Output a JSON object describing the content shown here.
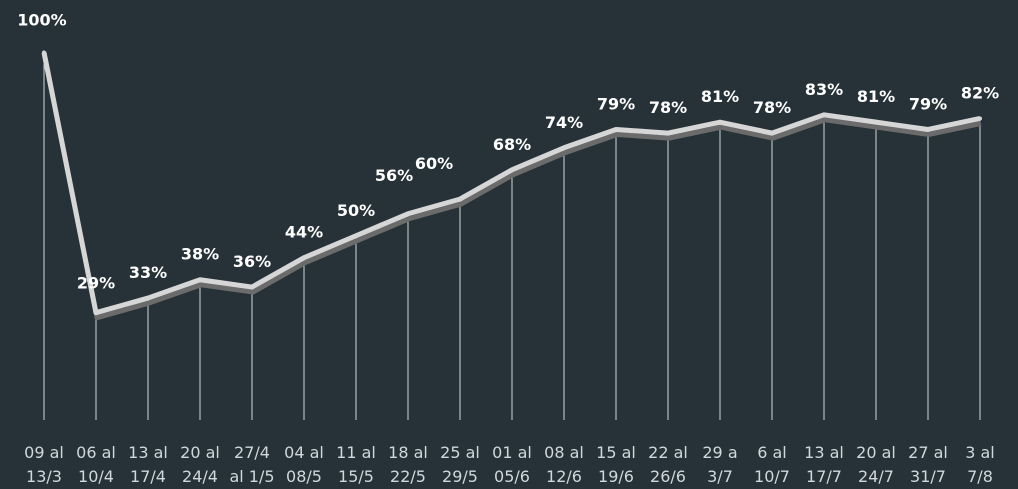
{
  "chart_data": {
    "type": "line",
    "title": "",
    "xlabel": "",
    "ylabel": "",
    "ylim": [
      0,
      100
    ],
    "grid": false,
    "legend": "none",
    "colors": {
      "background": "#263238",
      "line": "#d6d6d6",
      "line_shadow": "#6b6b6b",
      "drop_lines": "#cfd8dc",
      "label_text": "#ffffff",
      "axis_text": "#cfd8dc"
    },
    "categories": [
      [
        "09 al",
        "13/3"
      ],
      [
        "06 al",
        "10/4"
      ],
      [
        "13 al",
        "17/4"
      ],
      [
        "20 al",
        "24/4"
      ],
      [
        "27/4",
        "al 1/5"
      ],
      [
        "04 al",
        "08/5"
      ],
      [
        "11 al",
        "15/5"
      ],
      [
        "18 al",
        "22/5"
      ],
      [
        "25 al",
        "29/5"
      ],
      [
        "01 al",
        "05/6"
      ],
      [
        "08 al",
        "12/6"
      ],
      [
        "15 al",
        "19/6"
      ],
      [
        "22 al",
        "26/6"
      ],
      [
        "29 a",
        "3/7"
      ],
      [
        "6 al",
        "10/7"
      ],
      [
        "13 al",
        "17/7"
      ],
      [
        "20 al",
        "24/7"
      ],
      [
        "27 al",
        "31/7"
      ],
      [
        "3 al",
        "7/8"
      ]
    ],
    "values": [
      100,
      29,
      33,
      38,
      36,
      44,
      50,
      56,
      60,
      68,
      74,
      79,
      78,
      81,
      78,
      83,
      81,
      79,
      82
    ],
    "data_labels": [
      "100%",
      "29%",
      "33%",
      "38%",
      "36%",
      "44%",
      "50%",
      "56%",
      "60%",
      "68%",
      "74%",
      "79%",
      "78%",
      "81%",
      "78%",
      "83%",
      "81%",
      "79%",
      "82%"
    ]
  }
}
